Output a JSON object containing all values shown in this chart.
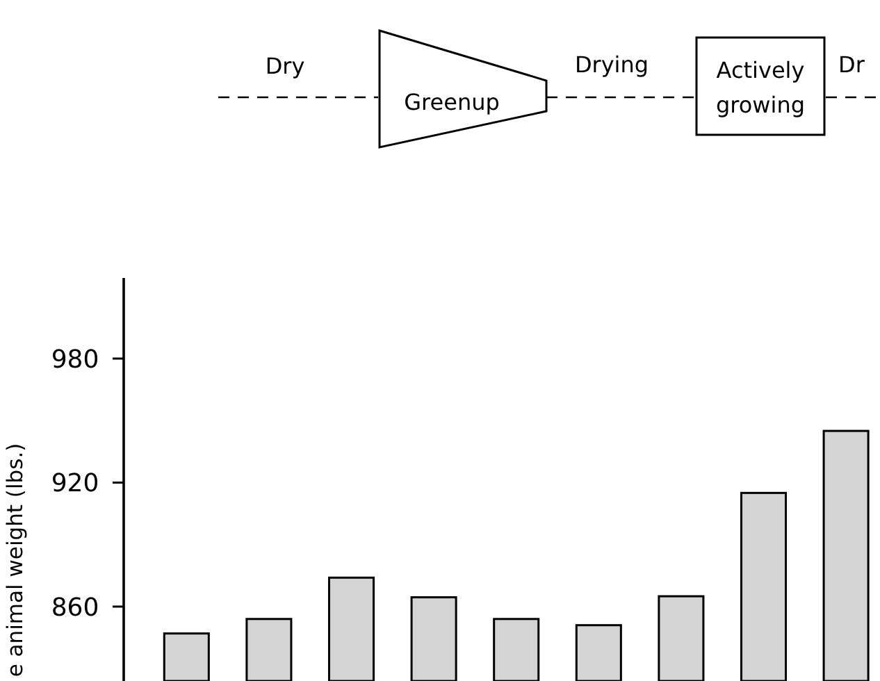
{
  "chart_data": {
    "type": "bar",
    "ylabel": "e animal weight (lbs.)",
    "annotations": [
      "Dry",
      "Greenup",
      "Drying",
      "Actively growing",
      "Dr"
    ],
    "categories": [
      null,
      null,
      null,
      null,
      null,
      null,
      null,
      null,
      null
    ],
    "values": [
      847,
      854,
      874,
      864.5,
      854,
      851,
      865,
      915,
      945
    ],
    "color": "#d4d4d4",
    "ylim": [
      824,
      1019
    ],
    "yticks": [
      860,
      920,
      980
    ],
    "grid": false
  }
}
